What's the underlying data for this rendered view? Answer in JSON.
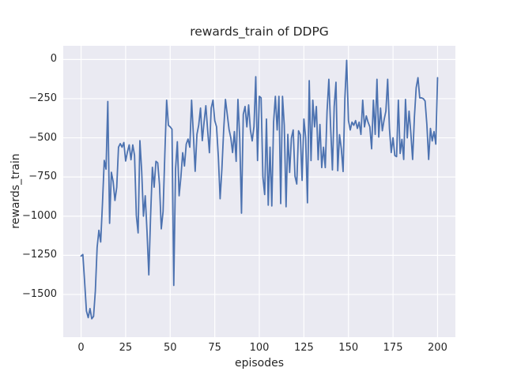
{
  "chart_data": {
    "type": "line",
    "title": "rewards_train of DDPG",
    "xlabel": "episodes",
    "ylabel": "rewards_train",
    "style": "seaborn-darkgrid",
    "grid": true,
    "legend": false,
    "line_color": "#4C72B0",
    "plot_background_color": "#EAEAF2",
    "figure_background_color": "#FFFFFF",
    "gridline_color": "#FFFFFF",
    "text_color": "#262626",
    "x_ticks": [
      0,
      25,
      50,
      75,
      100,
      125,
      150,
      175,
      200
    ],
    "y_ticks": [
      0,
      -250,
      -500,
      -750,
      -1000,
      -1250,
      -1500
    ],
    "xlim": [
      -10,
      210
    ],
    "ylim": [
      -1772.5,
      87.5
    ],
    "x_range": [
      0,
      200,
      1
    ],
    "series": [
      {
        "name": "rewards_train",
        "values": [
          -1255,
          -1245,
          -1420,
          -1605,
          -1648,
          -1590,
          -1655,
          -1640,
          -1480,
          -1200,
          -1090,
          -1165,
          -920,
          -644,
          -700,
          -268,
          -1046,
          -720,
          -780,
          -900,
          -816,
          -560,
          -537,
          -560,
          -530,
          -648,
          -590,
          -545,
          -640,
          -545,
          -612,
          -996,
          -1107,
          -518,
          -712,
          -1000,
          -870,
          -1100,
          -1375,
          -1000,
          -688,
          -815,
          -650,
          -660,
          -800,
          -1081,
          -971,
          -600,
          -260,
          -420,
          -430,
          -445,
          -1442,
          -700,
          -525,
          -870,
          -750,
          -595,
          -680,
          -540,
          -508,
          -560,
          -260,
          -478,
          -714,
          -478,
          -418,
          -310,
          -518,
          -400,
          -295,
          -450,
          -595,
          -310,
          -260,
          -390,
          -430,
          -620,
          -889,
          -700,
          -450,
          -255,
          -350,
          -445,
          -500,
          -594,
          -460,
          -650,
          -255,
          -500,
          -981,
          -350,
          -300,
          -430,
          -290,
          -450,
          -520,
          -428,
          -110,
          -645,
          -235,
          -245,
          -750,
          -862,
          -380,
          -930,
          -560,
          -935,
          -400,
          -235,
          -450,
          -235,
          -920,
          -235,
          -420,
          -940,
          -478,
          -721,
          -500,
          -450,
          -745,
          -795,
          -455,
          -480,
          -772,
          -380,
          -500,
          -915,
          -135,
          -645,
          -260,
          -430,
          -300,
          -640,
          -415,
          -690,
          -560,
          -690,
          -330,
          -126,
          -430,
          -705,
          -300,
          -145,
          -710,
          -480,
          -570,
          -715,
          -245,
          -5,
          -390,
          -450,
          -400,
          -420,
          -390,
          -440,
          -400,
          -478,
          -260,
          -430,
          -360,
          -400,
          -430,
          -570,
          -260,
          -478,
          -126,
          -495,
          -310,
          -455,
          -385,
          -330,
          -126,
          -440,
          -594,
          -500,
          -613,
          -620,
          -260,
          -600,
          -510,
          -638,
          -255,
          -500,
          -330,
          -470,
          -638,
          -367,
          -180,
          -116,
          -245,
          -245,
          -250,
          -265,
          -417,
          -638,
          -440,
          -520,
          -460,
          -540,
          -116
        ]
      }
    ]
  }
}
